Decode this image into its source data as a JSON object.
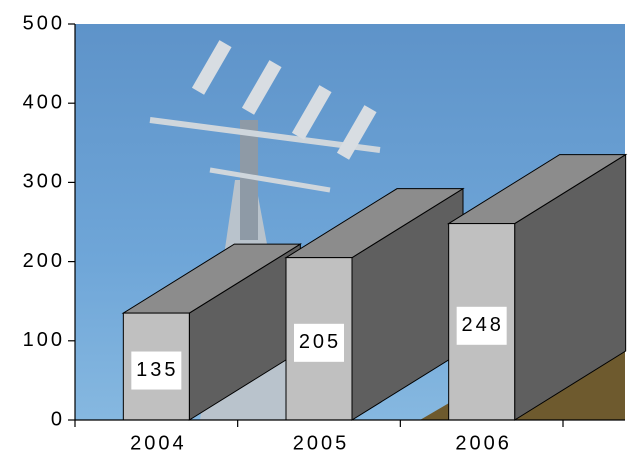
{
  "chart_data": {
    "type": "bar3d",
    "categories": [
      "2004",
      "2005",
      "2006"
    ],
    "values": [
      135,
      205,
      248
    ],
    "ylim": [
      0,
      500
    ],
    "yticks": [
      0,
      100,
      200,
      300,
      400,
      500
    ],
    "colors": {
      "front": "#c0c0c0",
      "top": "#8c8c8c",
      "side": "#5f5f5f"
    }
  }
}
